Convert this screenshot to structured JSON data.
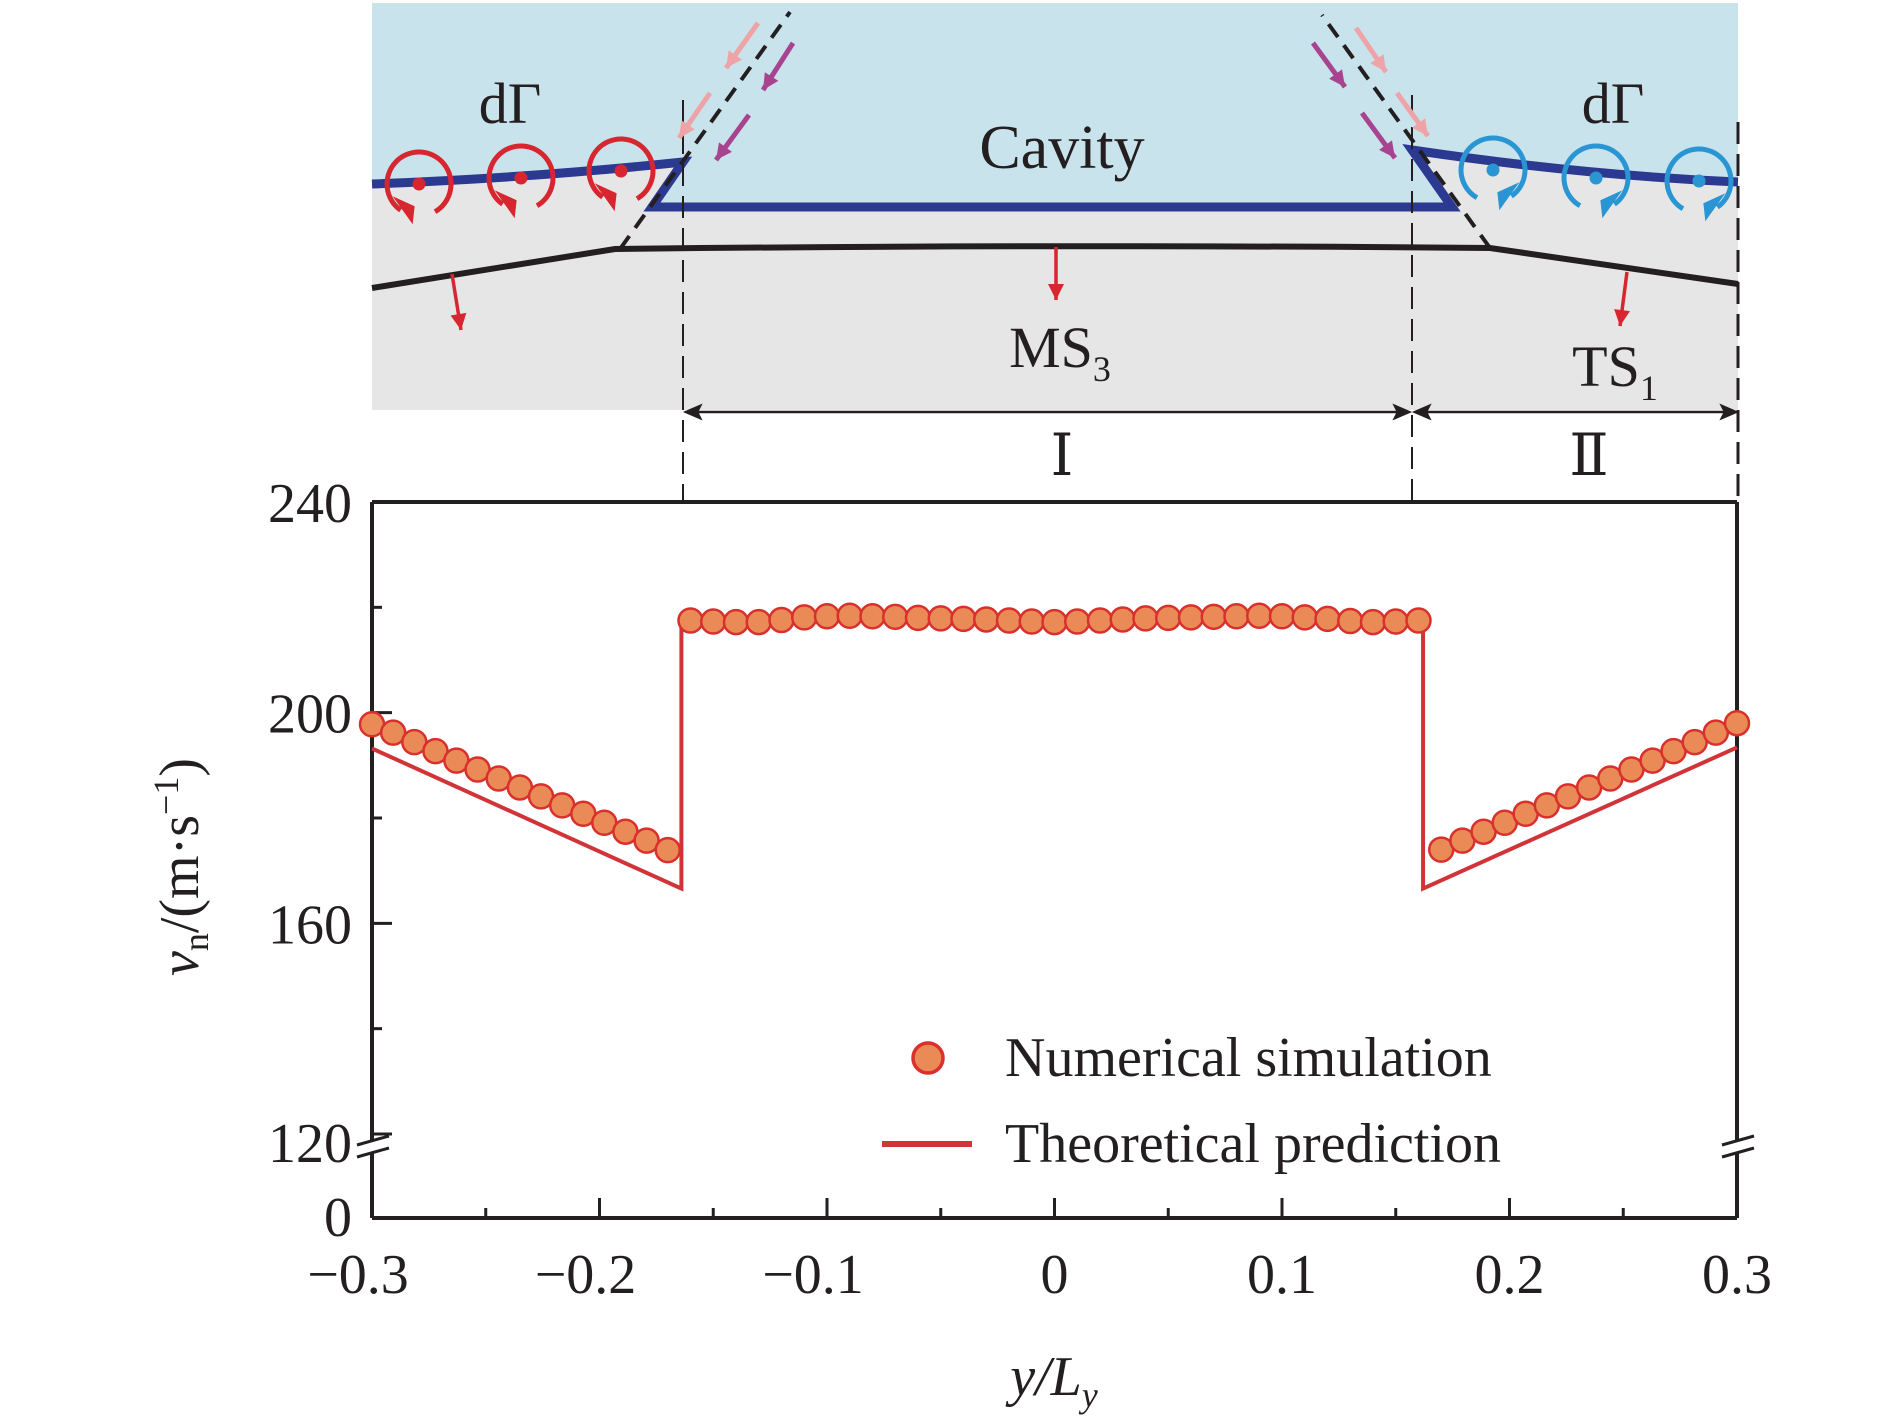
{
  "diagram": {
    "cavity_label": "Cavity",
    "left_vorticity_label": "dΓ",
    "right_vorticity_label": "dΓ",
    "ms_label": "MS",
    "ms_subscript": "3",
    "ts_label": "TS",
    "ts_subscript": "1",
    "region_1_label": "Ⅰ",
    "region_2_label": "Ⅱ",
    "colors": {
      "cavity_fill": "#c8e3ec",
      "wall_fill": "#e6e6e6",
      "cavity_boundary": "#2b3990",
      "shock_line": "#231f20",
      "left_vortex": "#d7262f",
      "right_vortex": "#2996d3",
      "normal_arrow": "#d7262f",
      "incoming_pink": "#eea3a6",
      "incoming_purple": "#a8448f"
    }
  },
  "chart_data": {
    "type": "scatter",
    "title": "",
    "xlabel": "y/L",
    "xlabel_subscript": "y",
    "ylabel": "v",
    "ylabel_subscript": "n",
    "ylabel_units": "/(m·s",
    "ylabel_units_exponent": "−1",
    "ylabel_units_close": ")",
    "xlim": [
      -0.3,
      0.3
    ],
    "ylim_upper": [
      120,
      240
    ],
    "ylim_lower": [
      0,
      0
    ],
    "axis_break": true,
    "x_ticks": [
      -0.3,
      -0.2,
      -0.1,
      0,
      0.1,
      0.2,
      0.3
    ],
    "x_tick_labels": [
      "−0.3",
      "−0.2",
      "−0.1",
      "0",
      "0.1",
      "0.2",
      "0.3"
    ],
    "x_minor_ticks": [
      -0.25,
      -0.15,
      -0.05,
      0.05,
      0.15,
      0.25
    ],
    "y_ticks": [
      240,
      200,
      160,
      120,
      0
    ],
    "y_tick_labels": [
      "240",
      "200",
      "160",
      "120",
      "0"
    ],
    "y_minor_ticks": [
      220,
      180,
      140
    ],
    "grid": false,
    "legend": {
      "position": "bottom-right",
      "entries": [
        {
          "label": "Numerical simulation",
          "marker": "circle"
        },
        {
          "label": "Theoretical prediction",
          "marker": "line"
        }
      ]
    },
    "series": [
      {
        "name": "Numerical simulation",
        "kind": "scatter",
        "color": "#e98a57",
        "edge_color": "#d9302c",
        "x": [
          -0.3,
          -0.2907,
          -0.2814,
          -0.2721,
          -0.2629,
          -0.2536,
          -0.2443,
          -0.235,
          -0.2257,
          -0.2164,
          -0.2071,
          -0.1979,
          -0.1886,
          -0.1793,
          -0.17,
          -0.16,
          -0.15,
          -0.14,
          -0.13,
          -0.12,
          -0.11,
          -0.1,
          -0.09,
          -0.08,
          -0.07,
          -0.06,
          -0.05,
          -0.04,
          -0.03,
          -0.02,
          -0.01,
          0,
          0.01,
          0.02,
          0.03,
          0.04,
          0.05,
          0.06,
          0.07,
          0.08,
          0.09,
          0.1,
          0.11,
          0.12,
          0.13,
          0.14,
          0.15,
          0.16,
          0.17,
          0.1793,
          0.1886,
          0.1979,
          0.2071,
          0.2164,
          0.2257,
          0.235,
          0.2443,
          0.2536,
          0.2629,
          0.2721,
          0.2814,
          0.2907,
          0.3
        ],
        "y": [
          197.8,
          196.2,
          194.4,
          192.7,
          190.9,
          189.2,
          187.5,
          185.8,
          184.1,
          182.4,
          180.8,
          179.1,
          177.4,
          175.7,
          173.9,
          217.5,
          217.3,
          217.2,
          217.2,
          217.6,
          218.1,
          218.3,
          218.4,
          218.3,
          218.2,
          218.0,
          217.9,
          217.8,
          217.7,
          217.5,
          217.3,
          217.2,
          217.3,
          217.5,
          217.7,
          217.9,
          218.0,
          218.1,
          218.2,
          218.3,
          218.4,
          218.3,
          218.1,
          217.8,
          217.4,
          217.2,
          217.3,
          217.5,
          174.0,
          175.7,
          177.4,
          179.1,
          180.8,
          182.4,
          184.1,
          185.8,
          187.5,
          189.2,
          190.9,
          192.7,
          194.4,
          196.2,
          198.0
        ]
      },
      {
        "name": "Theoretical prediction",
        "kind": "line",
        "color": "#d13438",
        "x": [
          -0.3,
          -0.164,
          -0.164,
          0.162,
          0.162,
          0.3
        ],
        "y": [
          193.2,
          166.6,
          217.8,
          217.8,
          166.6,
          193.4
        ]
      }
    ]
  }
}
